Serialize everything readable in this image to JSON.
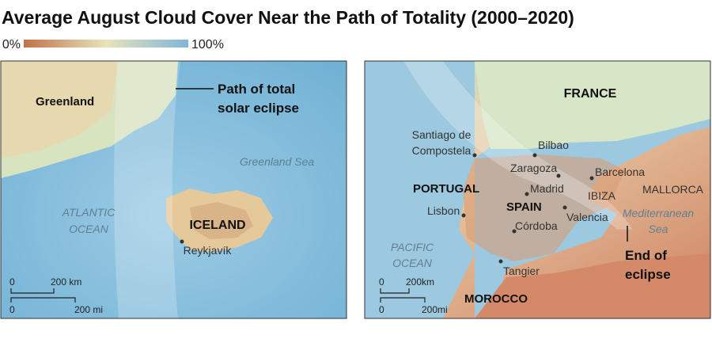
{
  "title": "Average August Cloud Cover Near the Path of Totality (2000–2020)",
  "legend": {
    "ticks": [
      {
        "value": 0,
        "label": "0%"
      },
      {
        "value": 100,
        "label": "100%"
      }
    ]
  },
  "left_map": {
    "labels": {
      "greenland": "Greenland",
      "path": [
        "Path of total",
        "solar eclipse"
      ],
      "greenland_sea": "Greenland Sea",
      "ocean": [
        "ATLANTIC",
        "OCEAN"
      ],
      "iceland": "ICELAND",
      "reykjavik": "Reykjavík"
    },
    "scale": {
      "km": [
        "0",
        "200 km"
      ],
      "mi": [
        "0",
        "200 mi"
      ]
    }
  },
  "right_map": {
    "labels": {
      "france": "FRANCE",
      "santiago": [
        "Santiago de",
        "Compostela"
      ],
      "bilbao": "Bilbao",
      "zaragoza": "Zaragoza",
      "barcelona": "Barcelona",
      "portugal": "PORTUGAL",
      "madrid": "Madrid",
      "ibiza": "IBIZA",
      "mallorca": "MALLORCA",
      "lisbon": "Lisbon",
      "spain": "SPAIN",
      "valencia": "Valencia",
      "med": [
        "Mediterranean",
        "Sea"
      ],
      "cordoba": "Córdoba",
      "ocean": [
        "PACIFIC",
        "OCEAN"
      ],
      "end": [
        "End of",
        "eclipse"
      ],
      "tangier": "Tangier",
      "morocco": "MOROCCO"
    },
    "scale": {
      "km": [
        "0",
        "200km"
      ],
      "mi": [
        "0",
        "200mi"
      ]
    }
  }
}
